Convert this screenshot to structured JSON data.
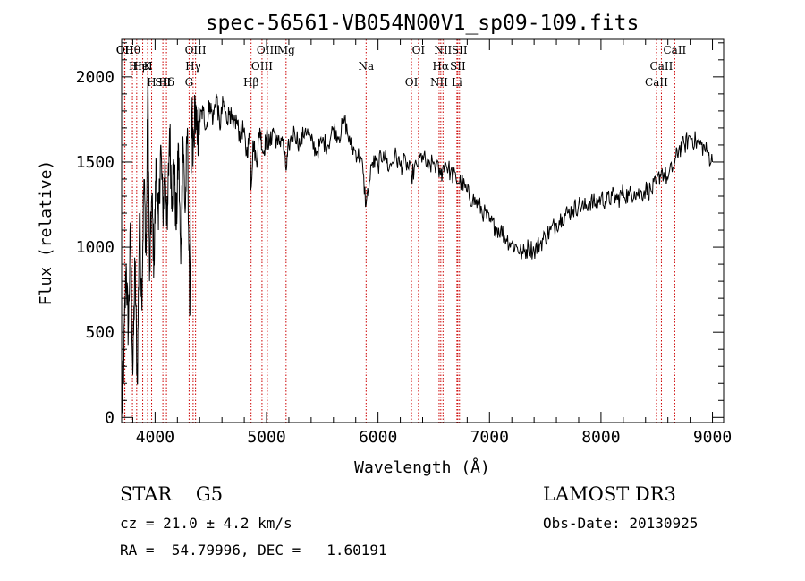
{
  "chart_data": {
    "type": "line",
    "title": "spec-56561-VB054N00V1_sp09-109.fits",
    "xlabel": "Wavelength (Å)",
    "ylabel": "Flux (relative)",
    "xlim": [
      3700,
      9100
    ],
    "ylim": [
      -30,
      2220
    ],
    "xticks": [
      4000,
      5000,
      6000,
      7000,
      8000,
      9000
    ],
    "yticks": [
      0,
      500,
      1000,
      1500,
      2000
    ],
    "series": [
      {
        "name": "spectrum",
        "x": [
          3700,
          3720,
          3740,
          3760,
          3780,
          3800,
          3820,
          3840,
          3860,
          3880,
          3900,
          3920,
          3935,
          3950,
          3970,
          3990,
          4010,
          4030,
          4050,
          4070,
          4090,
          4110,
          4130,
          4150,
          4170,
          4190,
          4210,
          4230,
          4250,
          4270,
          4290,
          4310,
          4330,
          4340,
          4360,
          4380,
          4400,
          4430,
          4460,
          4490,
          4520,
          4550,
          4580,
          4610,
          4640,
          4670,
          4700,
          4730,
          4760,
          4790,
          4820,
          4850,
          4861,
          4880,
          4910,
          4940,
          4970,
          5000,
          5030,
          5060,
          5100,
          5140,
          5175,
          5200,
          5250,
          5300,
          5350,
          5400,
          5450,
          5500,
          5550,
          5600,
          5650,
          5700,
          5750,
          5800,
          5850,
          5893,
          5950,
          6000,
          6050,
          6100,
          6150,
          6200,
          6250,
          6300,
          6350,
          6400,
          6450,
          6500,
          6563,
          6600,
          6650,
          6700,
          6750,
          6800,
          6850,
          6900,
          6950,
          7000,
          7050,
          7100,
          7150,
          7200,
          7250,
          7300,
          7350,
          7400,
          7450,
          7500,
          7550,
          7600,
          7650,
          7700,
          7750,
          7800,
          7850,
          7900,
          7950,
          8000,
          8050,
          8100,
          8150,
          8200,
          8250,
          8300,
          8350,
          8400,
          8450,
          8498,
          8542,
          8600,
          8662,
          8700,
          8750,
          8800,
          8850,
          8900,
          8950,
          9000
        ],
        "values": [
          0,
          350,
          900,
          500,
          1100,
          250,
          900,
          200,
          1200,
          700,
          1400,
          950,
          2000,
          800,
          1300,
          900,
          1500,
          1100,
          1600,
          1200,
          1500,
          1100,
          1700,
          1300,
          1500,
          1100,
          1600,
          900,
          1650,
          1200,
          1700,
          600,
          1800,
          1500,
          1850,
          1600,
          1750,
          1800,
          1700,
          1850,
          1750,
          1900,
          1700,
          1850,
          1750,
          1800,
          1700,
          1750,
          1650,
          1700,
          1550,
          1650,
          1350,
          1620,
          1500,
          1700,
          1550,
          1650,
          1600,
          1700,
          1600,
          1650,
          1450,
          1600,
          1680,
          1600,
          1700,
          1620,
          1560,
          1620,
          1600,
          1700,
          1650,
          1750,
          1600,
          1560,
          1520,
          1250,
          1500,
          1480,
          1560,
          1460,
          1540,
          1480,
          1500,
          1420,
          1480,
          1540,
          1460,
          1500,
          1420,
          1500,
          1440,
          1400,
          1380,
          1320,
          1280,
          1250,
          1200,
          1150,
          1120,
          1100,
          1050,
          1020,
          1000,
          960,
          1000,
          980,
          1020,
          1060,
          1100,
          1140,
          1180,
          1200,
          1220,
          1250,
          1230,
          1270,
          1250,
          1290,
          1270,
          1300,
          1280,
          1320,
          1300,
          1330,
          1310,
          1340,
          1330,
          1370,
          1450,
          1400,
          1500,
          1580,
          1600,
          1650,
          1620,
          1600,
          1560,
          1500
        ]
      }
    ],
    "line_labels": [
      {
        "label": "Hθ",
        "x": 3797
      },
      {
        "label": "K",
        "x": 3933
      },
      {
        "label": "Hδ",
        "x": 4102
      },
      {
        "label": "OII",
        "x": 3727
      },
      {
        "label": "HeI",
        "x": 3889
      },
      {
        "label": "SII",
        "x": 4070
      },
      {
        "label": "OII",
        "x": 3729
      },
      {
        "label": "Hη",
        "x": 3835
      },
      {
        "label": "H",
        "x": 3969
      },
      {
        "label": "OIII",
        "x": 4363
      },
      {
        "label": "Hγ",
        "x": 4341
      },
      {
        "label": "G",
        "x": 4305
      },
      {
        "label": "OIII",
        "x": 5007
      },
      {
        "label": "OIII",
        "x": 4959
      },
      {
        "label": "Hβ",
        "x": 4861
      },
      {
        "label": "Mg",
        "x": 5175
      },
      {
        "label": "Na",
        "x": 5893
      },
      {
        "label": "OI",
        "x": 6300
      },
      {
        "label": "OI",
        "x": 6363
      },
      {
        "label": "Hα",
        "x": 6563
      },
      {
        "label": "NII",
        "x": 6548
      },
      {
        "label": "NII",
        "x": 6583
      },
      {
        "label": "SII",
        "x": 6716
      },
      {
        "label": "Li",
        "x": 6708
      },
      {
        "label": "SII",
        "x": 6731
      },
      {
        "label": "CaII",
        "x": 8542
      },
      {
        "label": "CaII",
        "x": 8498
      },
      {
        "label": "CaII",
        "x": 8662
      }
    ]
  },
  "info": {
    "object_class": "STAR    G5",
    "survey": "LAMOST DR3",
    "redshift": "cz = 21.0 ± 4.2 km/s",
    "obs_date": "Obs-Date: 20130925",
    "coords": "RA =  54.79996, DEC =   1.60191"
  },
  "colors": {
    "line": "#000000",
    "marker": "#cc0000"
  }
}
